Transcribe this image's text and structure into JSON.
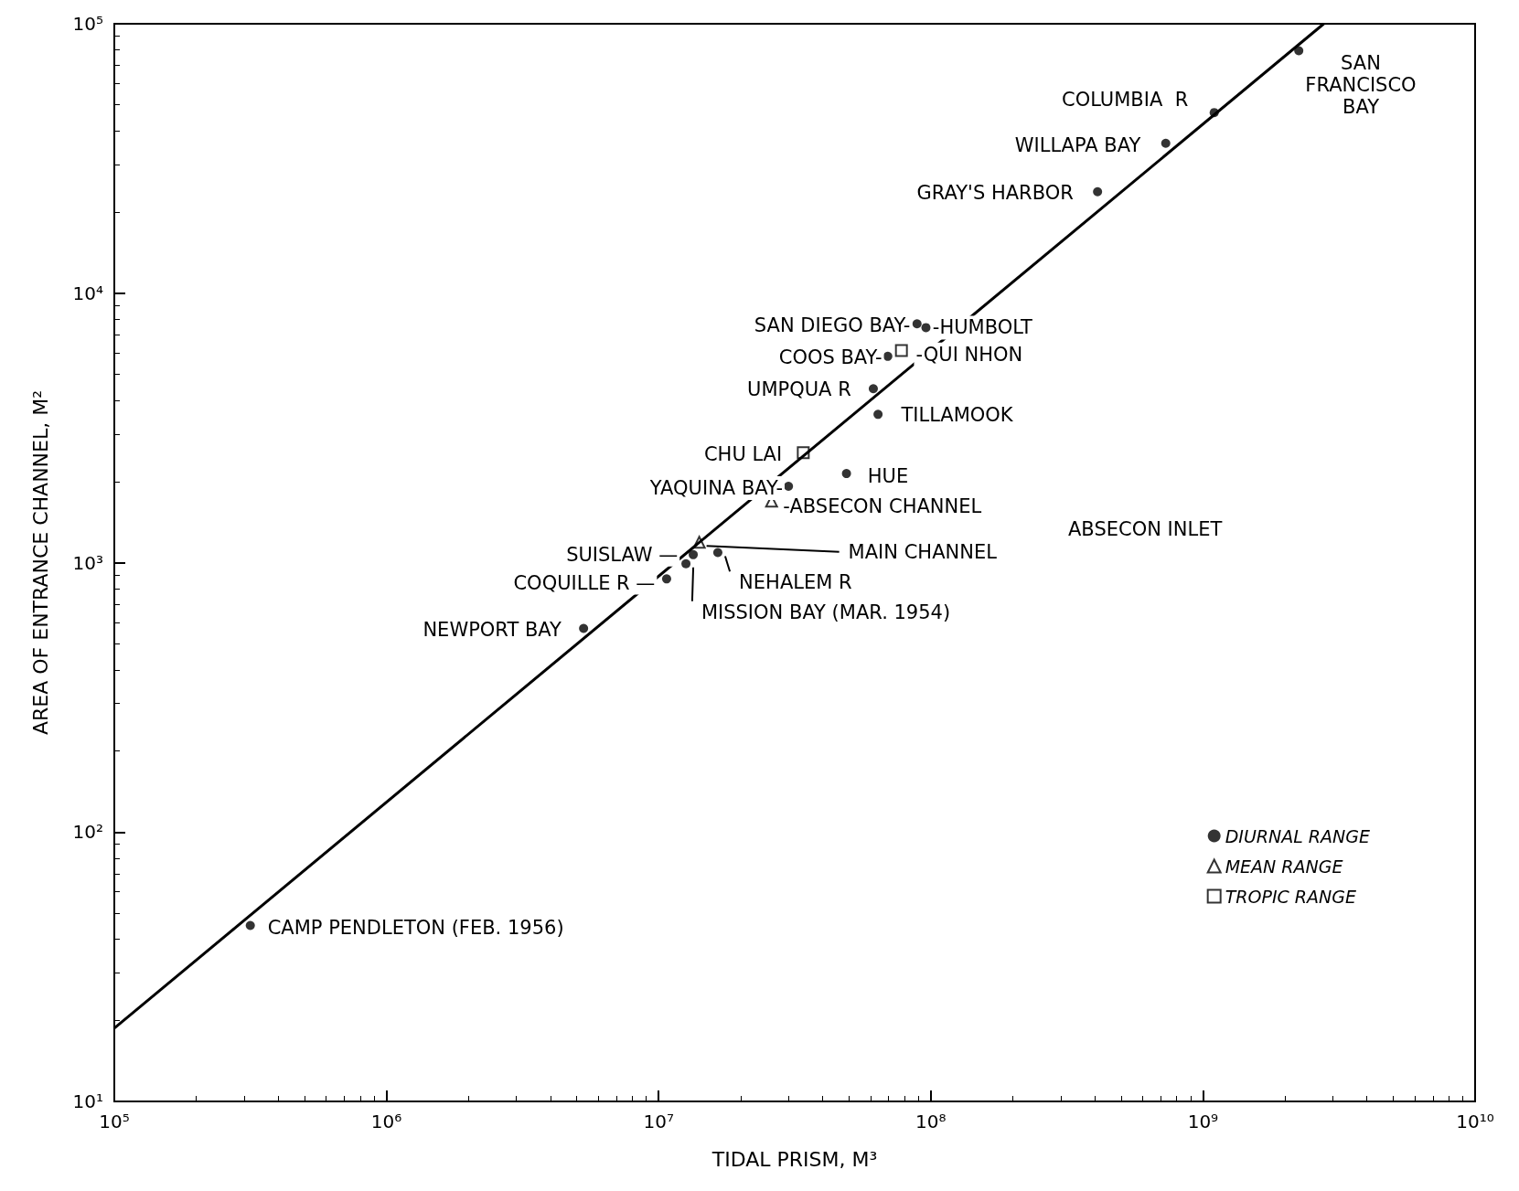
{
  "chart_data": {
    "type": "scatter",
    "xlabel": "TIDAL PRISM, M³",
    "ylabel": "AREA OF ENTRANCE CHANNEL, M²",
    "log": "xy",
    "grid": false,
    "legend": "bottom right",
    "xlim": [
      100000,
      10000000000
    ],
    "ylim": [
      10,
      100000
    ],
    "xticks": [
      {
        "value": 100000,
        "label": "10⁵"
      },
      {
        "value": 1000000,
        "label": "10⁶"
      },
      {
        "value": 10000000,
        "label": "10⁷"
      },
      {
        "value": 100000000,
        "label": "10⁸"
      },
      {
        "value": 1000000000,
        "label": "10⁹"
      },
      {
        "value": 10000000000,
        "label": "10¹⁰"
      }
    ],
    "yticks": [
      {
        "value": 10,
        "label": "10¹"
      },
      {
        "value": 100,
        "label": "10²"
      },
      {
        "value": 1000,
        "label": "10³"
      },
      {
        "value": 10000,
        "label": "10⁴"
      },
      {
        "value": 100000,
        "label": "10⁵"
      }
    ],
    "series": [
      {
        "name": "DIURNAL RANGE",
        "marker": "circle",
        "color": "#000000",
        "x": [
          316000,
          5300000,
          10700000,
          12600000,
          13400000,
          16500000,
          30000000,
          49000000,
          61500000,
          64000000,
          69500000,
          89000000,
          96000000,
          410000000,
          730000000,
          1100000000,
          2250000000
        ],
        "values": [
          45,
          570,
          870,
          990,
          1070,
          1090,
          1920,
          2140,
          4420,
          3550,
          5830,
          7700,
          7450,
          23800,
          36000,
          46800,
          79400
        ]
      },
      {
        "name": "MEAN RANGE",
        "marker": "triangle",
        "color": "#000000",
        "x": [
          14100000,
          26000000
        ],
        "values": [
          1190,
          1690
        ]
      },
      {
        "name": "TROPIC RANGE",
        "marker": "square",
        "color": "#000000",
        "x": [
          34000000,
          78000000
        ],
        "values": [
          2560,
          6120
        ]
      },
      {
        "type": "line",
        "line_style": "solid",
        "marker": "none",
        "color": "#000000",
        "x": [
          100000,
          2780000000
        ],
        "values": [
          18.7,
          100000
        ]
      }
    ],
    "annotations": [
      {
        "text": "CAMP PENDLETON (FEB. 1956)",
        "x": 316000,
        "y": 45
      },
      {
        "text": "SAN\nFRANCISCO\nBAY",
        "x": 2250000000,
        "y": 79400
      },
      {
        "text": "COLUMBIA  R",
        "x": 1100000000,
        "y": 46800
      },
      {
        "text": "WILLAPA BAY",
        "x": 730000000,
        "y": 36000
      },
      {
        "text": "GRAY'S HARBOR",
        "x": 410000000,
        "y": 23800
      },
      {
        "text": "SAN DIEGO BAY-",
        "x": 89000000,
        "y": 7700
      },
      {
        "text": "-HUMBOLT",
        "x": 96000000,
        "y": 7450
      },
      {
        "text": "COOS BAY-",
        "x": 69500000,
        "y": 5830
      },
      {
        "text": "-QUI NHON",
        "x": 78000000,
        "y": 6120
      },
      {
        "text": "UMPQUA R",
        "x": 61500000,
        "y": 4420
      },
      {
        "text": "TILLAMOOK",
        "x": 64000000,
        "y": 3550
      },
      {
        "text": "CHU LAI",
        "x": 34000000,
        "y": 2560
      },
      {
        "text": "HUE",
        "x": 49000000,
        "y": 2140
      },
      {
        "text": "YAQUINA BAY-",
        "x": 30000000,
        "y": 1920
      },
      {
        "text": "-ABSECON CHANNEL",
        "x": 26000000,
        "y": 1690
      },
      {
        "text": "MAIN CHANNEL",
        "x": 14100000,
        "y": 1190
      },
      {
        "text": "SUISLAW —",
        "x": 13400000,
        "y": 1070
      },
      {
        "text": "NEHALEM R",
        "x": 16500000,
        "y": 1090
      },
      {
        "text": "COQUILLE R —",
        "x": 10700000,
        "y": 870
      },
      {
        "text": "MISSION BAY (MAR. 1954)",
        "x": 12600000,
        "y": 990
      },
      {
        "text": "NEWPORT BAY",
        "x": 5300000,
        "y": 570
      },
      "ABSECON INLET"
    ]
  }
}
